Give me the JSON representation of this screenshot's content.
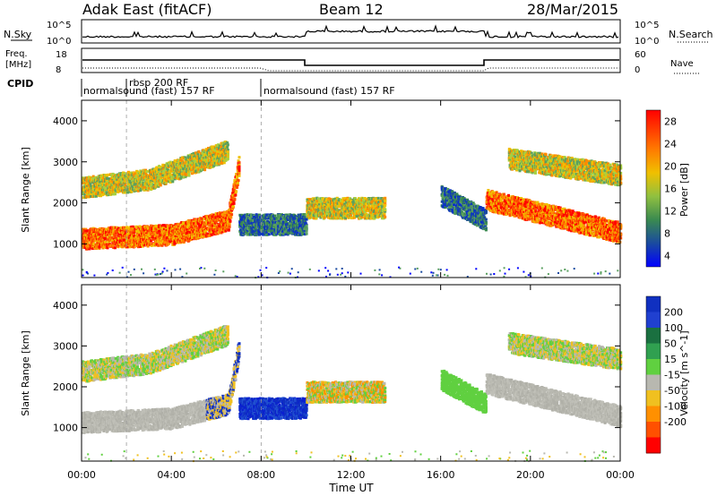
{
  "header": {
    "radar": "Adak East (fitACF)",
    "beam": "Beam 12",
    "date": "28/Mar/2015"
  },
  "panels": {
    "nsky": {
      "left_label": "N.Sky",
      "right_label": "N.Search",
      "left_ticks": [
        "10^5",
        "10^0"
      ],
      "right_ticks": [
        "10^5",
        "10^0"
      ]
    },
    "freq": {
      "left_label_1": "Freq.",
      "left_label_2": "[MHz]",
      "left_ticks": [
        "18",
        "8"
      ],
      "right_label": "Nave",
      "right_ticks": [
        "60",
        "0"
      ]
    },
    "cpid": {
      "label": "CPID",
      "modes": [
        "normalsound (fast) 157 RF",
        "rbsp 200 RF",
        "normalsound (fast) 157 RF"
      ]
    },
    "power": {
      "ylabel": "Slant Range [km]",
      "colorbar_label": "Power [dB]",
      "colorbar_ticks": [
        "28",
        "24",
        "20",
        "16",
        "12",
        "8",
        "4"
      ],
      "colorbar_colors": [
        "#ff0000",
        "#ff6a00",
        "#ff9c00",
        "#f0d000",
        "#a8d040",
        "#5aa060",
        "#2f7040",
        "#1e5090",
        "#0a30c8",
        "#0000ff"
      ]
    },
    "velocity": {
      "ylabel": "Slant Range [km]",
      "colorbar_label": "Velocity [m s^-1]",
      "colorbar_ticks": [
        "200",
        "100",
        "50",
        "15",
        "-15",
        "-50",
        "-100",
        "-200"
      ],
      "colorbar_colors": [
        "#1030c0",
        "#2040d0",
        "#1a7040",
        "#30a050",
        "#60d040",
        "#b8b8b0",
        "#f0c020",
        "#ff9000",
        "#ff5000",
        "#ff0000"
      ]
    }
  },
  "xaxis": {
    "ticks": [
      "00:00",
      "04:00",
      "08:00",
      "12:00",
      "16:00",
      "20:00",
      "00:00"
    ],
    "label": "Time UT"
  },
  "chart_data": {
    "type": "heatmap",
    "x_unit": "hours UT",
    "xlim": [
      0,
      24
    ],
    "y_unit": "km",
    "ylim": [
      180,
      4500
    ],
    "yticks": [
      1000,
      2000,
      3000,
      4000
    ],
    "power_bands": [
      {
        "t": [
          0,
          4,
          6.5,
          7
        ],
        "r0": [
          1150,
          1250,
          1600,
          3000
        ],
        "r1": [
          1150,
          1250,
          1600,
          3000
        ],
        "level": "high"
      },
      {
        "t": [
          0,
          3,
          6.5
        ],
        "r0": [
          2400,
          2600,
          3300
        ],
        "r1": [
          2400,
          2600,
          3300
        ],
        "level": "mid"
      },
      {
        "t": [
          7,
          10
        ],
        "r0": [
          1500,
          1500
        ],
        "r1": [
          1500,
          1500
        ],
        "level": "low"
      },
      {
        "t": [
          10,
          13.5
        ],
        "r0": [
          1900,
          1900
        ],
        "r1": [
          1900,
          1900
        ],
        "level": "mid"
      },
      {
        "t": [
          16,
          18
        ],
        "r0": [
          2200,
          1600
        ],
        "r1": [
          2200,
          1600
        ],
        "level": "low"
      },
      {
        "t": [
          18,
          24
        ],
        "r0": [
          2100,
          1300
        ],
        "r1": [
          2100,
          1300
        ],
        "level": "high"
      },
      {
        "t": [
          19,
          24
        ],
        "r0": [
          3100,
          2700
        ],
        "r1": [
          3100,
          2700
        ],
        "level": "mid"
      }
    ]
  }
}
